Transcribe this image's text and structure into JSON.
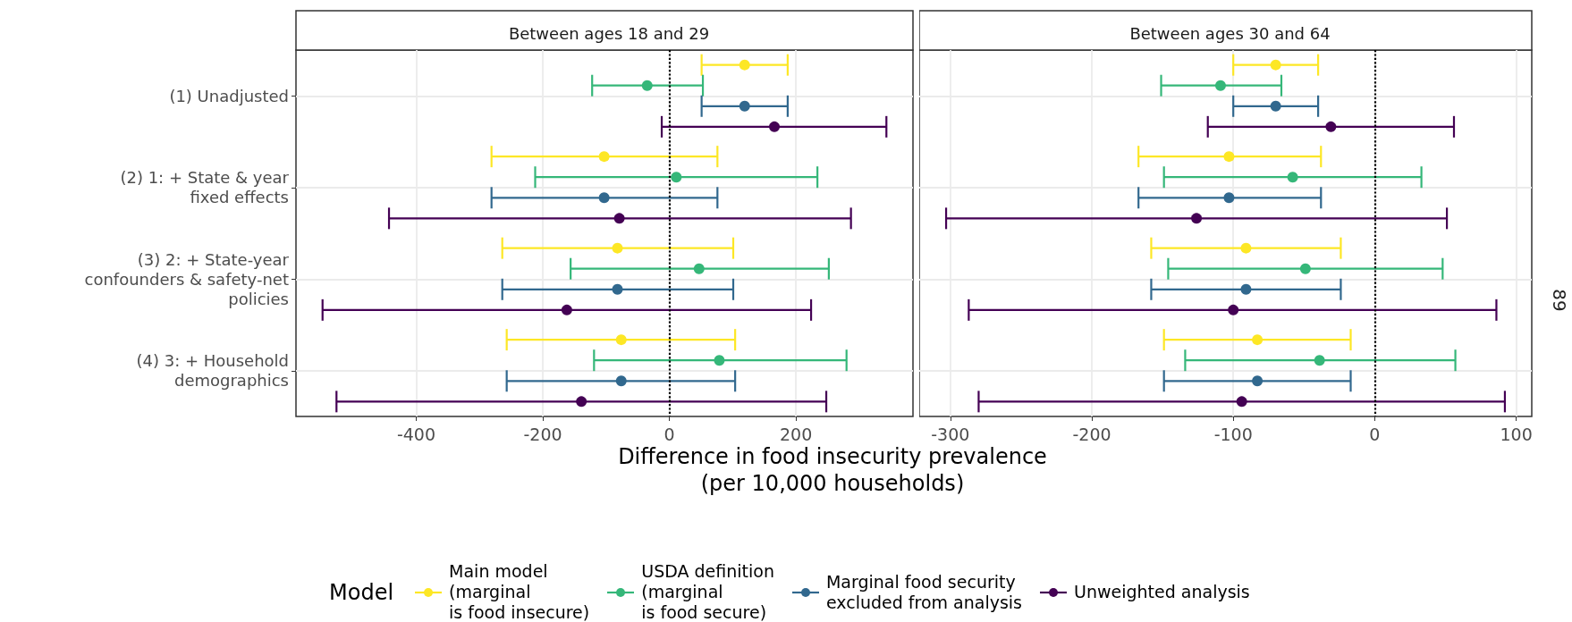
{
  "chart_data": [
    {
      "type": "scatter",
      "orientation": "horizontal",
      "title": "Between ages 18 and 29",
      "xlabel": "Difference in food insecurity prevalence\n(per 10,000 households)",
      "legend_title": "Model",
      "legend": "bottom",
      "marker": "circle",
      "grid": true,
      "categories": [
        "(1) Unadjusted",
        "(2) 1: + State & year\nfixed effects",
        "(3) 2: + State-year\nconfounders & safety-net\npolicies",
        "(4) 3: + Household\ndemographics"
      ],
      "xlim": [
        -590,
        385
      ],
      "xticks": [
        -400,
        -200,
        0,
        200
      ],
      "ref_lines": [
        {
          "axis": "x",
          "value": 0,
          "color": "#000000",
          "line_style": "dotted"
        }
      ],
      "series": [
        {
          "name": "Main model\n(marginal\nis food insecure)",
          "color": "#fde725",
          "values": [
            119,
            -103,
            -82,
            -76
          ],
          "errors": [
            [
              51,
              187
            ],
            [
              -281,
              76
            ],
            [
              -264,
              101
            ],
            [
              -257,
              104
            ]
          ]
        },
        {
          "name": "USDA definition\n(marginal\nis food secure)",
          "color": "#35b779",
          "values": [
            -35,
            11,
            47,
            79
          ],
          "errors": [
            [
              -122,
              53
            ],
            [
              -212,
              234
            ],
            [
              -156,
              252
            ],
            [
              -119,
              280
            ]
          ]
        },
        {
          "name": "Marginal food security\nexcluded from analysis",
          "color": "#31688e",
          "values": [
            119,
            -103,
            -82,
            -76
          ],
          "errors": [
            [
              51,
              187
            ],
            [
              -281,
              76
            ],
            [
              -264,
              101
            ],
            [
              -257,
              104
            ]
          ]
        },
        {
          "name": "Unweighted analysis",
          "color": "#440154",
          "values": [
            166,
            -79,
            -162,
            -139
          ],
          "errors": [
            [
              -12,
              343
            ],
            [
              -443,
              287
            ],
            [
              -548,
              224
            ],
            [
              -526,
              248
            ]
          ]
        }
      ]
    },
    {
      "type": "scatter",
      "orientation": "horizontal",
      "title": "Between ages 30 and 64",
      "marker": "circle",
      "grid": true,
      "tick_labels": "x",
      "annotations": [
        "89"
      ],
      "xlim": [
        -322,
        111
      ],
      "xticks": [
        -300,
        -200,
        -100,
        0,
        100
      ],
      "ref_lines": [
        {
          "axis": "x",
          "value": 0,
          "color": "#000000",
          "line_style": "dotted"
        }
      ],
      "series": [
        {
          "color": "#fde725",
          "values": [
            -70,
            -103,
            -91,
            -83
          ],
          "errors": [
            [
              -100,
              -40
            ],
            [
              -167,
              -38
            ],
            [
              -158,
              -24
            ],
            [
              -149,
              -17
            ]
          ]
        },
        {
          "color": "#35b779",
          "values": [
            -109,
            -58,
            -49,
            -39
          ],
          "errors": [
            [
              -151,
              -66
            ],
            [
              -149,
              33
            ],
            [
              -146,
              48
            ],
            [
              -134,
              57
            ]
          ]
        },
        {
          "color": "#31688e",
          "values": [
            -70,
            -103,
            -91,
            -83
          ],
          "errors": [
            [
              -100,
              -40
            ],
            [
              -167,
              -38
            ],
            [
              -158,
              -24
            ],
            [
              -149,
              -17
            ]
          ]
        },
        {
          "color": "#440154",
          "values": [
            -31,
            -126,
            -100,
            -94
          ],
          "errors": [
            [
              -118,
              56
            ],
            [
              -303,
              51
            ],
            [
              -287,
              86
            ],
            [
              -280,
              92
            ]
          ]
        }
      ]
    }
  ]
}
